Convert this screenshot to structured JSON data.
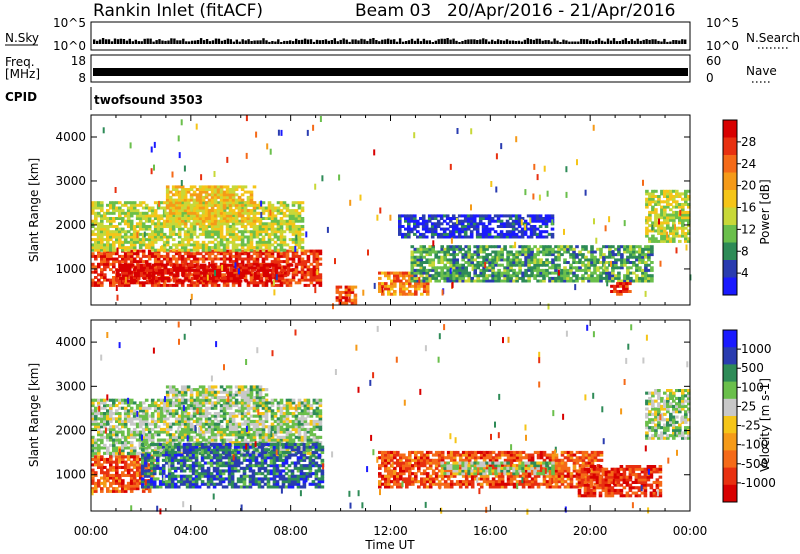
{
  "header": {
    "station": "Rankin Inlet (fitACF)",
    "beam": "Beam 03",
    "date_range": "20/Apr/2016 - 21/Apr/2016"
  },
  "strips": {
    "nsky_label": "N.Sky",
    "nsky_ticks": [
      "10^5",
      "10^0"
    ],
    "nsearch_label": "N.Search",
    "nsearch_ticks": [
      "10^5",
      "10^0"
    ],
    "freq_label": "Freq.",
    "freq_unit": "[MHz]",
    "freq_ticks": [
      "18",
      "8"
    ],
    "nave_label": "Nave",
    "nave_ticks": [
      "60",
      "0"
    ],
    "cpid_label": "CPID",
    "cpid_value": "twofsound 3503"
  },
  "colors": {
    "power_scale": [
      "#1a1aff",
      "#2a3cb0",
      "#2e8b57",
      "#6abf4b",
      "#c8d838",
      "#f5c518",
      "#f59a18",
      "#f56a18",
      "#e83010",
      "#d80000"
    ],
    "velocity_scale": [
      "#1a1aff",
      "#2a3cb0",
      "#2e8b57",
      "#6abf4b",
      "#c8c8c8",
      "#f5c518",
      "#f59a18",
      "#f56a18",
      "#e83010",
      "#d80000"
    ]
  },
  "chart_data": [
    {
      "type": "heatmap",
      "name": "power",
      "ylabel": "Slant Range [km]",
      "xlabel": "Time UT",
      "x_ticks": [
        "00:00",
        "04:00",
        "08:00",
        "12:00",
        "16:00",
        "20:00",
        "00:00"
      ],
      "y_ticks": [
        "1000",
        "2000",
        "3000",
        "4000"
      ],
      "ylim": [
        180,
        4500
      ],
      "xlim_hours": [
        0,
        24
      ],
      "colorbar": {
        "label": "Power [dB]",
        "ticks": [
          "4",
          "8",
          "12",
          "16",
          "20",
          "24",
          "28"
        ],
        "range": [
          0,
          32
        ]
      },
      "regions": [
        {
          "t0": 0.0,
          "t1": 9.2,
          "r0": 600,
          "r1": 1400,
          "level": 0.85
        },
        {
          "t0": 1.0,
          "t1": 8.0,
          "r0": 700,
          "r1": 1100,
          "level": 0.95
        },
        {
          "t0": 0.0,
          "t1": 8.5,
          "r0": 1400,
          "r1": 2500,
          "level": 0.45
        },
        {
          "t0": 3.0,
          "t1": 6.5,
          "r0": 2000,
          "r1": 2900,
          "level": 0.55
        },
        {
          "t0": 9.8,
          "t1": 10.6,
          "r0": 200,
          "r1": 600,
          "level": 0.8
        },
        {
          "t0": 11.5,
          "t1": 13.5,
          "r0": 400,
          "r1": 900,
          "level": 0.7
        },
        {
          "t0": 12.8,
          "t1": 22.5,
          "r0": 700,
          "r1": 1500,
          "level": 0.3
        },
        {
          "t0": 20.8,
          "t1": 21.6,
          "r0": 400,
          "r1": 700,
          "level": 0.85
        },
        {
          "t0": 22.2,
          "t1": 24.0,
          "r0": 1600,
          "r1": 2800,
          "level": 0.45
        },
        {
          "t0": 12.3,
          "t1": 18.5,
          "r0": 1700,
          "r1": 2200,
          "level": 0.1
        }
      ]
    },
    {
      "type": "heatmap",
      "name": "velocity",
      "ylabel": "Slant Range [km]",
      "xlabel": "Time UT",
      "x_ticks": [
        "00:00",
        "04:00",
        "08:00",
        "12:00",
        "16:00",
        "20:00",
        "00:00"
      ],
      "y_ticks": [
        "1000",
        "2000",
        "3000",
        "4000"
      ],
      "ylim": [
        180,
        4500
      ],
      "xlim_hours": [
        0,
        24
      ],
      "colorbar": {
        "label": "Velocity [m s-1]",
        "ticks": [
          "1000",
          "500",
          "100",
          "25",
          "-25",
          "-100",
          "-500",
          "-1000"
        ],
        "range": [
          -1200,
          1200
        ]
      },
      "regions": [
        {
          "t0": 0.0,
          "t1": 9.2,
          "r0": 1400,
          "r1": 2700,
          "level": 0.4
        },
        {
          "t0": 3.0,
          "t1": 7.0,
          "r0": 2600,
          "r1": 3000,
          "level": 0.4
        },
        {
          "t0": 0.0,
          "t1": 2.5,
          "r0": 600,
          "r1": 1400,
          "level": 0.8
        },
        {
          "t0": 2.0,
          "t1": 9.2,
          "r0": 700,
          "r1": 1700,
          "level": 0.2
        },
        {
          "t0": 11.5,
          "t1": 20.5,
          "r0": 700,
          "r1": 1500,
          "level": 0.8
        },
        {
          "t0": 19.5,
          "t1": 22.8,
          "r0": 500,
          "r1": 1200,
          "level": 0.85
        },
        {
          "t0": 22.2,
          "t1": 24.0,
          "r0": 1800,
          "r1": 2900,
          "level": 0.4
        },
        {
          "t0": 14.0,
          "t1": 18.5,
          "r0": 1000,
          "r1": 1300,
          "level": 0.4
        }
      ]
    }
  ]
}
